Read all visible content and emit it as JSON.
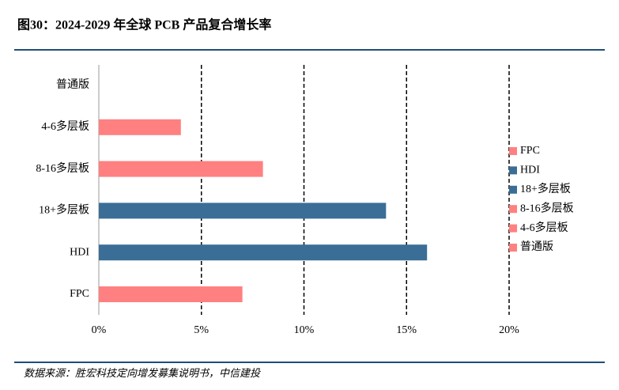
{
  "chart_data": {
    "type": "bar",
    "orientation": "horizontal",
    "title": "图30：2024-2029 年全球 PCB 产品复合增长率",
    "source": "数据来源：胜宏科技定向增发募集说明书，中信建投",
    "categories": [
      "普通版",
      "4-6多层板",
      "8-16多层板",
      "18+多层板",
      "HDI",
      "FPC"
    ],
    "values": [
      0,
      4,
      8,
      14,
      16,
      7
    ],
    "colors": [
      "#ff8080",
      "#ff8080",
      "#ff8080",
      "#3b6e96",
      "#3b6e96",
      "#ff8080"
    ],
    "xlim": [
      0,
      20
    ],
    "xticks": [
      {
        "value": 0,
        "label": "0%"
      },
      {
        "value": 5,
        "label": "5%"
      },
      {
        "value": 10,
        "label": "10%"
      },
      {
        "value": 15,
        "label": "15%"
      },
      {
        "value": 20,
        "label": "20%"
      }
    ],
    "grid": true,
    "legend": "right"
  }
}
